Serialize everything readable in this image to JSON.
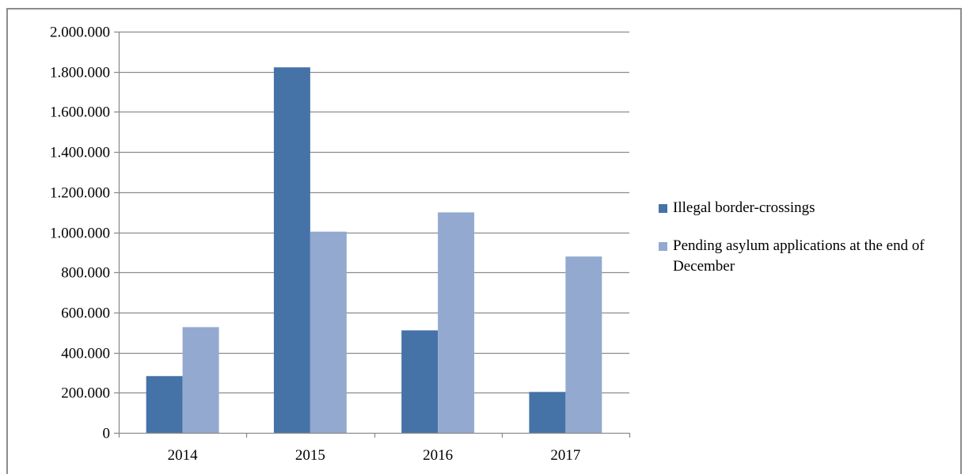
{
  "chart_data": {
    "type": "bar",
    "categories": [
      "2014",
      "2015",
      "2016",
      "2017"
    ],
    "series": [
      {
        "name": "Illegal border-crossings",
        "color": "#4572a7",
        "values": [
          283000,
          1822000,
          511000,
          204000
        ]
      },
      {
        "name": "Pending asylum applications at the end of December",
        "color": "#93a9cf",
        "values": [
          527000,
          1003000,
          1099000,
          879000
        ]
      }
    ],
    "ylim": [
      0,
      2000000
    ],
    "yticks": [
      0,
      200000,
      400000,
      600000,
      800000,
      1000000,
      1200000,
      1400000,
      1600000,
      1800000,
      2000000
    ],
    "ytick_labels": [
      "0",
      "200.000",
      "400.000",
      "600.000",
      "800.000",
      "1.000.000",
      "1.200.000",
      "1.400.000",
      "1.600.000",
      "1.800.000",
      "2.000.000"
    ],
    "grid": true,
    "legend_position": "right",
    "title": "",
    "xlabel": "",
    "ylabel": ""
  },
  "legend": {
    "items": [
      {
        "label": "Illegal border-crossings",
        "color": "#4572a7"
      },
      {
        "label": "Pending asylum applications at the end of December",
        "color": "#93a9cf"
      }
    ]
  }
}
